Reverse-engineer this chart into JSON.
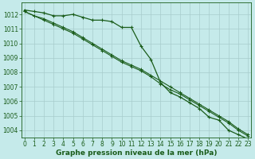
{
  "x": [
    0,
    1,
    2,
    3,
    4,
    5,
    6,
    7,
    8,
    9,
    10,
    11,
    12,
    13,
    14,
    15,
    16,
    17,
    18,
    19,
    20,
    21,
    22,
    23
  ],
  "series1": [
    1012.3,
    1012.2,
    1012.1,
    1011.9,
    1011.9,
    1012.0,
    1011.8,
    1011.6,
    1011.6,
    1011.5,
    1011.1,
    1011.1,
    1009.8,
    1008.9,
    1007.3,
    1006.6,
    1006.3,
    1005.9,
    1005.5,
    1004.9,
    1004.7,
    1004.0,
    1003.7,
    1003.4
  ],
  "series2": [
    1012.2,
    1011.9,
    1011.7,
    1011.4,
    1011.1,
    1010.8,
    1010.4,
    1010.0,
    1009.6,
    1009.2,
    1008.8,
    1008.5,
    1008.2,
    1007.8,
    1007.4,
    1007.0,
    1006.6,
    1006.2,
    1005.8,
    1005.4,
    1005.0,
    1004.6,
    1004.1,
    1003.7
  ],
  "series3": [
    1012.2,
    1011.9,
    1011.6,
    1011.3,
    1011.0,
    1010.7,
    1010.3,
    1009.9,
    1009.5,
    1009.1,
    1008.7,
    1008.4,
    1008.1,
    1007.7,
    1007.2,
    1006.8,
    1006.5,
    1006.1,
    1005.7,
    1005.3,
    1004.9,
    1004.5,
    1004.0,
    1003.6
  ],
  "bg_color": "#c5eaea",
  "grid_color": "#a8cccc",
  "line_color": "#1a5c1a",
  "xlabel": "Graphe pression niveau de la mer (hPa)",
  "ylim": [
    1003.5,
    1012.8
  ],
  "xlim": [
    -0.3,
    23.3
  ],
  "yticks": [
    1004,
    1005,
    1006,
    1007,
    1008,
    1009,
    1010,
    1011,
    1012
  ],
  "xticks": [
    0,
    1,
    2,
    3,
    4,
    5,
    6,
    7,
    8,
    9,
    10,
    11,
    12,
    13,
    14,
    15,
    16,
    17,
    18,
    19,
    20,
    21,
    22,
    23
  ],
  "tick_fontsize": 5.5,
  "label_fontsize": 6.5
}
